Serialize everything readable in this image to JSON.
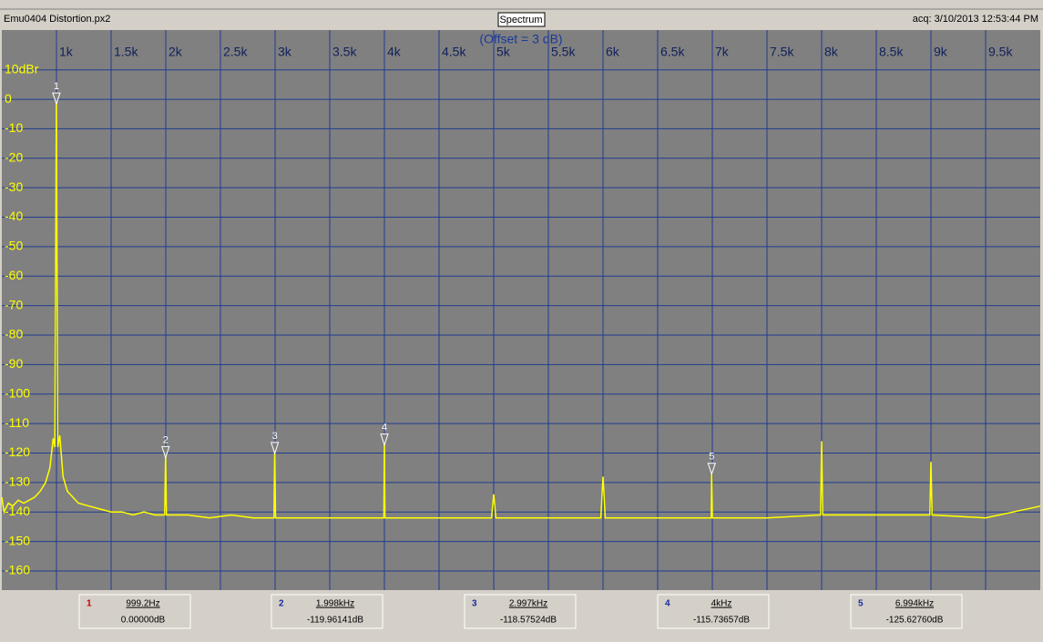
{
  "window": {
    "file": "Emu0404 Distortion.px2",
    "view": "Spectrum",
    "acquired": "acq: 3/10/2013 12:53:44 PM"
  },
  "chart_data": {
    "type": "line",
    "title": "(Offset = 3 dB)",
    "xlim": [
      500,
      10000
    ],
    "ylim": [
      -166.5,
      23.5
    ],
    "xticks": [
      {
        "value": 1000,
        "label": "1k"
      },
      {
        "value": 1500,
        "label": "1.5k"
      },
      {
        "value": 2000,
        "label": "2k"
      },
      {
        "value": 2500,
        "label": "2.5k"
      },
      {
        "value": 3000,
        "label": "3k"
      },
      {
        "value": 3500,
        "label": "3.5k"
      },
      {
        "value": 4000,
        "label": "4k"
      },
      {
        "value": 4500,
        "label": "4.5k"
      },
      {
        "value": 5000,
        "label": "5k"
      },
      {
        "value": 5500,
        "label": "5.5k"
      },
      {
        "value": 6000,
        "label": "6k"
      },
      {
        "value": 6500,
        "label": "6.5k"
      },
      {
        "value": 7000,
        "label": "7k"
      },
      {
        "value": 7500,
        "label": "7.5k"
      },
      {
        "value": 8000,
        "label": "8k"
      },
      {
        "value": 8500,
        "label": "8.5k"
      },
      {
        "value": 9000,
        "label": "9k"
      },
      {
        "value": 9500,
        "label": "9.5k"
      }
    ],
    "yticks": [
      {
        "value": 10,
        "label": "10dBr"
      },
      0,
      -10,
      -20,
      -30,
      -40,
      -50,
      -60,
      -70,
      -80,
      -90,
      -100,
      -110,
      -120,
      -130,
      -140,
      -150,
      -160
    ],
    "grid": true,
    "series": [
      {
        "color": "#ffff00",
        "x": [
          500,
          520,
          560,
          600,
          650,
          700,
          750,
          800,
          850,
          900,
          940,
          970,
          985,
          999.2,
          1012,
          1030,
          1060,
          1100,
          1150,
          1200,
          1300,
          1400,
          1500,
          1600,
          1700,
          1800,
          1900,
          1990,
          1998,
          2006,
          2200,
          2400,
          2600,
          2800,
          2990,
          2997,
          3004,
          3200,
          3500,
          3800,
          3995,
          4000,
          4005,
          4500,
          4980,
          5000,
          5020,
          5500,
          5980,
          6000,
          6020,
          6500,
          6990,
          6994,
          7000,
          7500,
          7990,
          8000,
          8010,
          8500,
          8990,
          9000,
          9010,
          9500,
          10000
        ],
        "values": [
          -135,
          -140,
          -137,
          -138,
          -136,
          -137,
          -136,
          -135,
          -133,
          -130,
          -125,
          -115,
          -118,
          0,
          -118,
          -114,
          -128,
          -133,
          -135,
          -137,
          -138,
          -139,
          -140,
          -140,
          -141,
          -140,
          -141,
          -141,
          -120,
          -141,
          -141,
          -142,
          -141,
          -142,
          -142,
          -118.6,
          -142,
          -142,
          -142,
          -142,
          -142,
          -115.7,
          -142,
          -142,
          -142,
          -134,
          -142,
          -142,
          -142,
          -128,
          -142,
          -142,
          -142,
          -125.6,
          -142,
          -142,
          -141,
          -116,
          -141,
          -141,
          -141,
          -123,
          -141,
          -142,
          -138
        ]
      }
    ],
    "markers": [
      {
        "label": "1",
        "x": 999.2,
        "x_label": "999.2Hz",
        "y": 0,
        "y_label": "0.00000dB"
      },
      {
        "label": "2",
        "x": 1998,
        "x_label": "1.998kHz",
        "y": -119.96141,
        "y_label": "-119.96141dB"
      },
      {
        "label": "3",
        "x": 2997,
        "x_label": "2.997kHz",
        "y": -118.57524,
        "y_label": "-118.57524dB"
      },
      {
        "label": "4",
        "x": 4000,
        "x_label": "4kHz",
        "y": -115.73657,
        "y_label": "-115.73657dB"
      },
      {
        "label": "5",
        "x": 6994,
        "x_label": "6.994kHz",
        "y": -125.6276,
        "y_label": "-125.62760dB"
      }
    ]
  }
}
